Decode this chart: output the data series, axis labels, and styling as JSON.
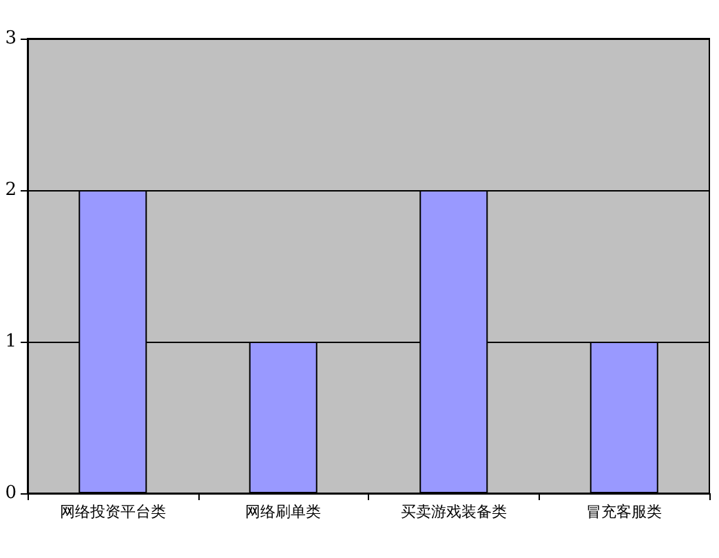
{
  "chart_data": {
    "type": "bar",
    "categories": [
      "网络投资平台类",
      "网络刷单类",
      "买卖游戏装备类",
      "冒充客服类"
    ],
    "values": [
      2,
      1,
      2,
      1
    ],
    "color": "#9999ff",
    "ylim": [
      0,
      3
    ],
    "yticks": [
      0,
      1,
      2,
      3
    ],
    "grid": "y"
  }
}
